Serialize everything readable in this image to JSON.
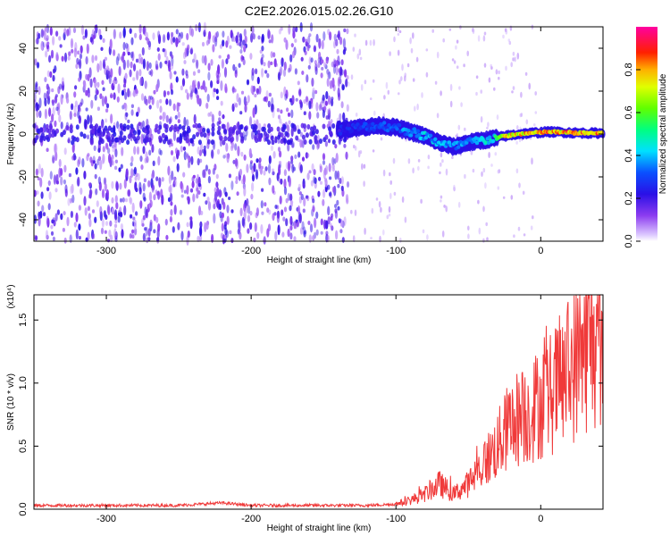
{
  "title": "C2E2.2026.015.02.26.G10",
  "colors": {
    "snr_line": "#f03a3a",
    "signal_blue": "#3a10e0",
    "background_speckle": "#9b55f0"
  },
  "chart_data": [
    {
      "type": "heatmap",
      "name": "spectrogram",
      "xlabel": "Height of straight line (km)",
      "ylabel": "Frequency (Hz)",
      "xlim": [
        -350,
        43
      ],
      "ylim": [
        -50,
        50
      ],
      "xticks": [
        -300,
        -200,
        -100,
        0
      ],
      "xtick_labels": [
        "-300",
        "-200",
        "-100",
        "0"
      ],
      "yticks": [
        -40,
        -20,
        0,
        20,
        40
      ],
      "ytick_labels": [
        "-40",
        "-20",
        "0",
        "20",
        "40"
      ],
      "colorbar": {
        "label": "Normalized spectral amplitude",
        "range": [
          0,
          1
        ],
        "ticks": [
          0.0,
          0.2,
          0.4,
          0.6,
          0.8
        ],
        "tick_labels": [
          "0.0",
          "0.2",
          "0.4",
          "0.6",
          "0.8"
        ],
        "colormap": "rainbow (white-violet-blue-cyan-green-yellow-red-magenta)"
      },
      "noise_region_end_x": -133,
      "ridge": {
        "x": [
          -140,
          -125,
          -110,
          -100,
          -90,
          -80,
          -70,
          -60,
          -50,
          -40,
          -32,
          -25,
          -15,
          -5,
          5,
          15,
          25,
          35,
          43
        ],
        "y": [
          2,
          3,
          4,
          3,
          1,
          -1,
          -4,
          -6,
          -4,
          -3,
          -2,
          -1,
          0,
          0.5,
          1,
          0.8,
          0.5,
          0.4,
          0.4
        ],
        "amplitude": [
          0.25,
          0.3,
          0.32,
          0.35,
          0.4,
          0.45,
          0.42,
          0.4,
          0.42,
          0.45,
          0.5,
          0.78,
          0.82,
          0.85,
          0.87,
          0.88,
          0.9,
          0.9,
          0.9
        ]
      }
    },
    {
      "type": "line",
      "name": "snr",
      "xlabel": "Height of straight line (km)",
      "ylabel": "SNR (10 * v/v)",
      "y_multiplier": "(x10⁴)",
      "xlim": [
        -350,
        43
      ],
      "ylim": [
        0,
        1.7
      ],
      "xticks": [
        -300,
        -200,
        -100,
        0
      ],
      "xtick_labels": [
        "-300",
        "-200",
        "-100",
        "0"
      ],
      "yticks": [
        0.0,
        0.5,
        1.0,
        1.5
      ],
      "ytick_labels": [
        "0.0",
        "0.5",
        "1.0",
        "1.5"
      ],
      "series": [
        {
          "x": [
            -350,
            -300,
            -250,
            -220,
            -200,
            -150,
            -120,
            -100,
            -90,
            -80,
            -70,
            -60,
            -50,
            -40,
            -30,
            -20,
            -10,
            0,
            10,
            20,
            30,
            35,
            43
          ],
          "y": [
            0.03,
            0.03,
            0.03,
            0.05,
            0.03,
            0.03,
            0.03,
            0.04,
            0.07,
            0.12,
            0.2,
            0.12,
            0.2,
            0.35,
            0.5,
            0.7,
            0.75,
            0.85,
            0.95,
            1.1,
            1.25,
            1.35,
            1.3
          ]
        }
      ]
    }
  ]
}
